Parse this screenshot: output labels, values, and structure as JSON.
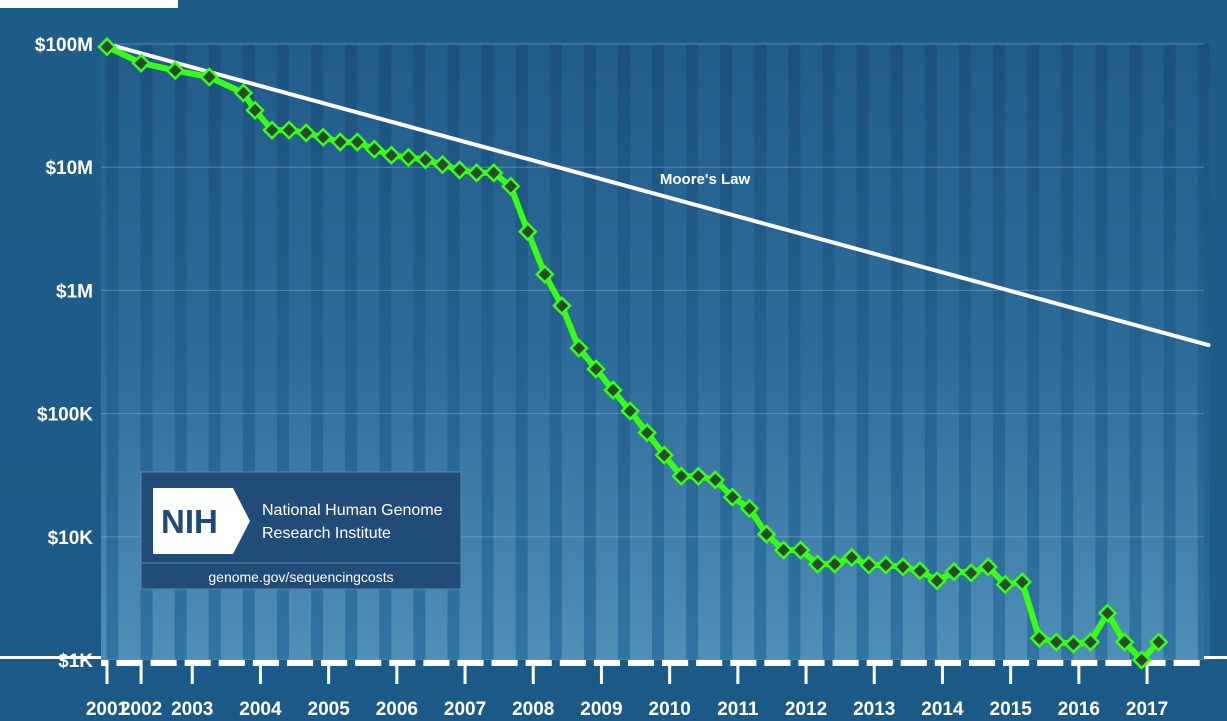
{
  "chart_data": {
    "type": "line",
    "y_scale": "log",
    "ylim": [
      1000,
      100000000
    ],
    "yticks": [
      {
        "value": 100000000,
        "label": "$100M"
      },
      {
        "value": 10000000,
        "label": "$10M"
      },
      {
        "value": 1000000,
        "label": "$1M"
      },
      {
        "value": 100000,
        "label": "$100K"
      },
      {
        "value": 10000,
        "label": "$10K"
      },
      {
        "value": 1000,
        "label": "$1K"
      }
    ],
    "xlim": [
      2001.7,
      2018.2
    ],
    "xticks": [
      {
        "value": 2001.75,
        "label": "2001"
      },
      {
        "value": 2002.25,
        "label": "2002"
      },
      {
        "value": 2003,
        "label": "2003"
      },
      {
        "value": 2004,
        "label": "2004"
      },
      {
        "value": 2005,
        "label": "2005"
      },
      {
        "value": 2006,
        "label": "2006"
      },
      {
        "value": 2007,
        "label": "2007"
      },
      {
        "value": 2008,
        "label": "2008"
      },
      {
        "value": 2009,
        "label": "2009"
      },
      {
        "value": 2010,
        "label": "2010"
      },
      {
        "value": 2011,
        "label": "2011"
      },
      {
        "value": 2012,
        "label": "2012"
      },
      {
        "value": 2013,
        "label": "2013"
      },
      {
        "value": 2014,
        "label": "2014"
      },
      {
        "value": 2015,
        "label": "2015"
      },
      {
        "value": 2016,
        "label": "2016"
      },
      {
        "value": 2017,
        "label": "2017"
      }
    ],
    "series": [
      {
        "name": "",
        "color": "#39ff14",
        "marker_color": "#2a4a2a",
        "x": [
          2001.75,
          2002.25,
          2002.75,
          2003.25,
          2003.75,
          2003.92,
          2004.17,
          2004.42,
          2004.67,
          2004.92,
          2005.17,
          2005.42,
          2005.67,
          2005.92,
          2006.17,
          2006.42,
          2006.67,
          2006.92,
          2007.17,
          2007.42,
          2007.67,
          2007.92,
          2008.17,
          2008.42,
          2008.67,
          2008.92,
          2009.17,
          2009.42,
          2009.67,
          2009.92,
          2010.17,
          2010.42,
          2010.67,
          2010.92,
          2011.17,
          2011.42,
          2011.67,
          2011.92,
          2012.17,
          2012.42,
          2012.67,
          2012.92,
          2013.17,
          2013.42,
          2013.67,
          2013.92,
          2014.17,
          2014.42,
          2014.67,
          2014.92,
          2015.17,
          2015.42,
          2015.67,
          2015.92,
          2016.17,
          2016.42,
          2016.67,
          2016.92,
          2017.17
        ],
        "values": [
          95000000,
          70000000,
          61000000,
          54000000,
          40000000,
          29000000,
          20000000,
          20000000,
          19000000,
          17500000,
          16000000,
          16000000,
          14000000,
          12500000,
          12000000,
          11500000,
          10500000,
          9500000,
          9000000,
          9000000,
          7000000,
          3000000,
          1350000,
          750000,
          340000,
          230000,
          155000,
          105000,
          70000,
          46000,
          31000,
          31000,
          29000,
          21000,
          17000,
          10500,
          7800,
          7800,
          6000,
          6000,
          6800,
          5900,
          5900,
          5700,
          5300,
          4400,
          5200,
          5100,
          5700,
          4100,
          4300,
          1500,
          1400,
          1350,
          1400,
          2400,
          1400,
          1000,
          1400
        ]
      }
    ],
    "trend": {
      "name": "Moore's Law",
      "color": "#ffffff",
      "x": [
        2001.75,
        2017.9
      ],
      "values": [
        100000000,
        360000
      ]
    },
    "legend": "none",
    "grid": "horizontal"
  },
  "nih": {
    "logo_text": "NIH",
    "name_line1": "National Human Genome",
    "name_line2": "Research Institute",
    "url": "genome.gov/sequencingcosts"
  }
}
